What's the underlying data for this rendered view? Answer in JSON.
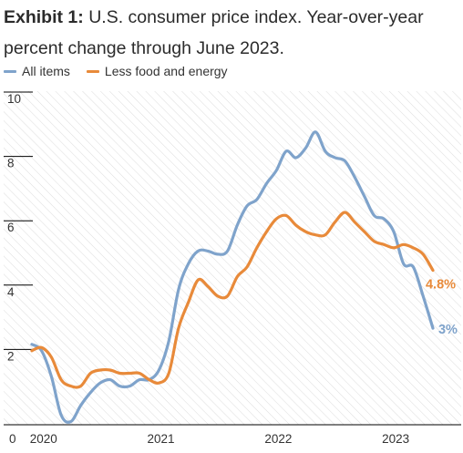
{
  "title": {
    "bold": "Exhibit 1:",
    "text": "U.S. consumer price index. Year-over-year percent change through June 2023."
  },
  "colors": {
    "all_items": "#7fa3cb",
    "core": "#e88a3a",
    "grid": "#000000"
  },
  "chart_data": {
    "type": "line",
    "title": "Exhibit 1: U.S. consumer price index. Year-over-year percent change through June 2023.",
    "ylim": [
      0,
      10
    ],
    "yticks": [
      "2",
      "4",
      "6",
      "8",
      "10"
    ],
    "xticks": [
      "2020",
      "2021",
      "2022",
      "2023"
    ],
    "legend_position": "top-left",
    "grid": false,
    "x": [
      2020.0,
      2020.083,
      2020.167,
      2020.25,
      2020.333,
      2020.417,
      2020.5,
      2020.583,
      2020.667,
      2020.75,
      2020.833,
      2020.917,
      2021.0,
      2021.083,
      2021.167,
      2021.25,
      2021.333,
      2021.417,
      2021.5,
      2021.583,
      2021.667,
      2021.75,
      2021.833,
      2021.917,
      2022.0,
      2022.083,
      2022.167,
      2022.25,
      2022.333,
      2022.417,
      2022.5,
      2022.583,
      2022.667,
      2022.75,
      2022.833,
      2022.917,
      2023.0,
      2023.083,
      2023.167,
      2023.25,
      2023.333,
      2023.417
    ],
    "series": [
      {
        "name": "All items",
        "values": [
          2.5,
          2.3,
          1.5,
          0.3,
          0.1,
          0.6,
          1.0,
          1.3,
          1.4,
          1.2,
          1.2,
          1.4,
          1.4,
          1.7,
          2.6,
          4.2,
          5.0,
          5.4,
          5.4,
          5.3,
          5.4,
          6.2,
          6.8,
          7.0,
          7.5,
          7.9,
          8.5,
          8.3,
          8.6,
          9.1,
          8.5,
          8.3,
          8.2,
          7.7,
          7.1,
          6.5,
          6.4,
          6.0,
          5.0,
          4.9,
          4.0,
          3.0
        ]
      },
      {
        "name": "Less food and energy",
        "values": [
          2.3,
          2.4,
          2.1,
          1.4,
          1.2,
          1.2,
          1.6,
          1.7,
          1.7,
          1.6,
          1.6,
          1.6,
          1.4,
          1.3,
          1.6,
          3.0,
          3.8,
          4.5,
          4.3,
          4.0,
          4.0,
          4.6,
          4.9,
          5.5,
          6.0,
          6.4,
          6.5,
          6.2,
          6.0,
          5.9,
          5.9,
          6.3,
          6.6,
          6.3,
          6.0,
          5.7,
          5.6,
          5.5,
          5.6,
          5.5,
          5.3,
          4.8
        ]
      }
    ],
    "end_labels": [
      "3%",
      "4.8%"
    ]
  }
}
